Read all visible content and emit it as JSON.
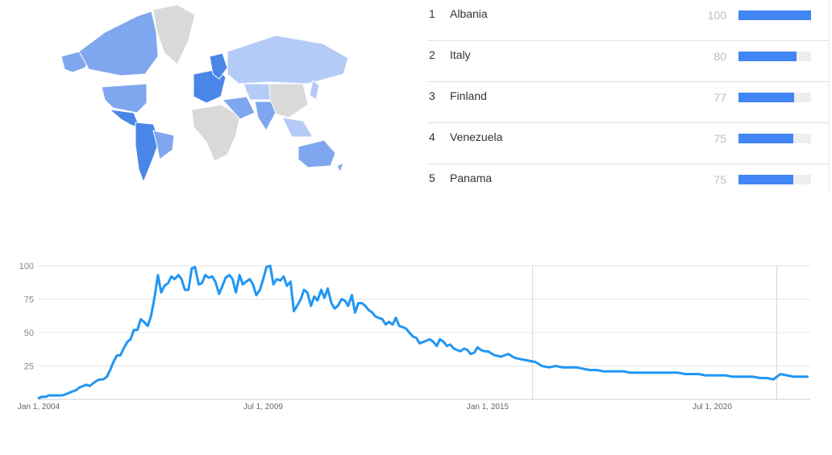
{
  "colors": {
    "line": "#2196f3",
    "bar_fill": "#4285f4",
    "map_strong": "#4a86e8",
    "map_medium": "#7fa7ef",
    "map_light": "#b5cbf7",
    "map_none": "#d9d9d9"
  },
  "map": {
    "regions": [
      {
        "name": "canada",
        "level": "medium"
      },
      {
        "name": "usa",
        "level": "medium"
      },
      {
        "name": "alaska",
        "level": "medium"
      },
      {
        "name": "greenland",
        "level": "none"
      },
      {
        "name": "mexico-central-america",
        "level": "strong"
      },
      {
        "name": "south-america",
        "level": "strong"
      },
      {
        "name": "brazil",
        "level": "medium"
      },
      {
        "name": "europe",
        "level": "strong"
      },
      {
        "name": "scandinavia",
        "level": "strong"
      },
      {
        "name": "russia",
        "level": "light"
      },
      {
        "name": "middle-east",
        "level": "medium"
      },
      {
        "name": "africa",
        "level": "none"
      },
      {
        "name": "central-asia",
        "level": "light"
      },
      {
        "name": "china",
        "level": "none"
      },
      {
        "name": "india",
        "level": "medium"
      },
      {
        "name": "southeast-asia",
        "level": "light"
      },
      {
        "name": "japan",
        "level": "light"
      },
      {
        "name": "australia",
        "level": "medium"
      },
      {
        "name": "new-zealand",
        "level": "medium"
      }
    ]
  },
  "ranking": [
    {
      "rank": "1",
      "country": "Albania",
      "value": 100
    },
    {
      "rank": "2",
      "country": "Italy",
      "value": 80
    },
    {
      "rank": "3",
      "country": "Finland",
      "value": 77
    },
    {
      "rank": "4",
      "country": "Venezuela",
      "value": 75
    },
    {
      "rank": "5",
      "country": "Panama",
      "value": 75
    }
  ],
  "chart_data": {
    "type": "line",
    "title": "",
    "xlabel": "",
    "ylabel": "",
    "xlim": [
      2004.0,
      2022.9
    ],
    "ylim": [
      0,
      100
    ],
    "y_ticks": [
      25,
      50,
      75,
      100
    ],
    "y_tick_labels": [
      "25",
      "50",
      "75",
      "100"
    ],
    "x_ticks": [
      2004.0,
      2009.5,
      2015.0,
      2020.5
    ],
    "x_tick_labels": [
      "Jan 1, 2004",
      "Jul 1, 2009",
      "Jan 1, 2015",
      "Jul 1, 2020"
    ],
    "marker_lines": [
      2016.1,
      2022.08
    ],
    "grid": true,
    "legend": "none",
    "series": [
      {
        "x": [
          2004.0,
          2004.08,
          2004.17,
          2004.25,
          2004.33,
          2004.42,
          2004.5,
          2004.58,
          2004.67,
          2004.75,
          2004.83,
          2004.92,
          2005.0,
          2005.08,
          2005.17,
          2005.25,
          2005.33,
          2005.42,
          2005.5,
          2005.58,
          2005.67,
          2005.75,
          2005.83,
          2005.92,
          2006.0,
          2006.08,
          2006.17,
          2006.25,
          2006.33,
          2006.42,
          2006.5,
          2006.58,
          2006.67,
          2006.75,
          2006.83,
          2006.92,
          2007.0,
          2007.08,
          2007.17,
          2007.25,
          2007.33,
          2007.42,
          2007.5,
          2007.58,
          2007.67,
          2007.75,
          2007.83,
          2007.92,
          2008.0,
          2008.08,
          2008.17,
          2008.25,
          2008.33,
          2008.42,
          2008.5,
          2008.58,
          2008.67,
          2008.75,
          2008.83,
          2008.92,
          2009.0,
          2009.08,
          2009.17,
          2009.25,
          2009.33,
          2009.42,
          2009.5,
          2009.58,
          2009.67,
          2009.75,
          2009.83,
          2009.92,
          2010.0,
          2010.08,
          2010.17,
          2010.25,
          2010.33,
          2010.42,
          2010.5,
          2010.58,
          2010.67,
          2010.75,
          2010.83,
          2010.92,
          2011.0,
          2011.08,
          2011.17,
          2011.25,
          2011.33,
          2011.42,
          2011.5,
          2011.58,
          2011.67,
          2011.75,
          2011.83,
          2011.92,
          2012.0,
          2012.08,
          2012.17,
          2012.25,
          2012.33,
          2012.42,
          2012.5,
          2012.58,
          2012.67,
          2012.75,
          2012.83,
          2012.92,
          2013.0,
          2013.08,
          2013.17,
          2013.25,
          2013.33,
          2013.42,
          2013.5,
          2013.58,
          2013.67,
          2013.75,
          2013.83,
          2013.92,
          2014.0,
          2014.08,
          2014.17,
          2014.25,
          2014.33,
          2014.42,
          2014.5,
          2014.58,
          2014.67,
          2014.75,
          2014.83,
          2014.92,
          2015.0,
          2015.17,
          2015.33,
          2015.5,
          2015.67,
          2015.83,
          2016.0,
          2016.17,
          2016.33,
          2016.5,
          2016.67,
          2016.83,
          2017.0,
          2017.17,
          2017.33,
          2017.5,
          2017.67,
          2017.83,
          2018.0,
          2018.17,
          2018.33,
          2018.5,
          2018.67,
          2018.83,
          2019.0,
          2019.17,
          2019.33,
          2019.5,
          2019.67,
          2019.83,
          2020.0,
          2020.17,
          2020.33,
          2020.5,
          2020.67,
          2020.83,
          2021.0,
          2021.17,
          2021.33,
          2021.5,
          2021.67,
          2021.83,
          2022.0,
          2022.17,
          2022.33,
          2022.5,
          2022.67,
          2022.83
        ],
        "y": [
          1,
          2,
          2,
          3,
          3,
          3,
          3,
          3,
          4,
          5,
          6,
          7,
          9,
          10,
          11,
          10,
          12,
          14,
          15,
          15,
          17,
          22,
          28,
          33,
          33,
          38,
          43,
          45,
          52,
          52,
          60,
          58,
          55,
          62,
          75,
          93,
          80,
          85,
          87,
          92,
          90,
          93,
          90,
          82,
          82,
          98,
          99,
          86,
          87,
          93,
          91,
          92,
          88,
          79,
          85,
          91,
          93,
          90,
          80,
          93,
          86,
          88,
          90,
          86,
          78,
          82,
          90,
          99,
          100,
          86,
          90,
          89,
          92,
          85,
          88,
          66,
          70,
          75,
          82,
          80,
          70,
          77,
          74,
          82,
          76,
          83,
          72,
          68,
          70,
          75,
          74,
          70,
          78,
          65,
          72,
          72,
          70,
          67,
          65,
          62,
          61,
          60,
          56,
          58,
          56,
          61,
          55,
          54,
          53,
          50,
          47,
          46,
          42,
          43,
          44,
          45,
          43,
          40,
          45,
          43,
          40,
          41,
          38,
          37,
          36,
          38,
          37,
          34,
          35,
          39,
          37,
          36,
          36,
          33,
          32,
          34,
          31,
          30,
          29,
          28,
          25,
          24,
          25,
          24,
          24,
          24,
          23,
          22,
          22,
          21,
          21,
          21,
          21,
          20,
          20,
          20,
          20,
          20,
          20,
          20,
          20,
          19,
          19,
          19,
          18,
          18,
          18,
          18,
          17,
          17,
          17,
          17,
          16,
          16,
          15,
          19,
          18,
          17,
          17,
          17
        ]
      }
    ]
  }
}
